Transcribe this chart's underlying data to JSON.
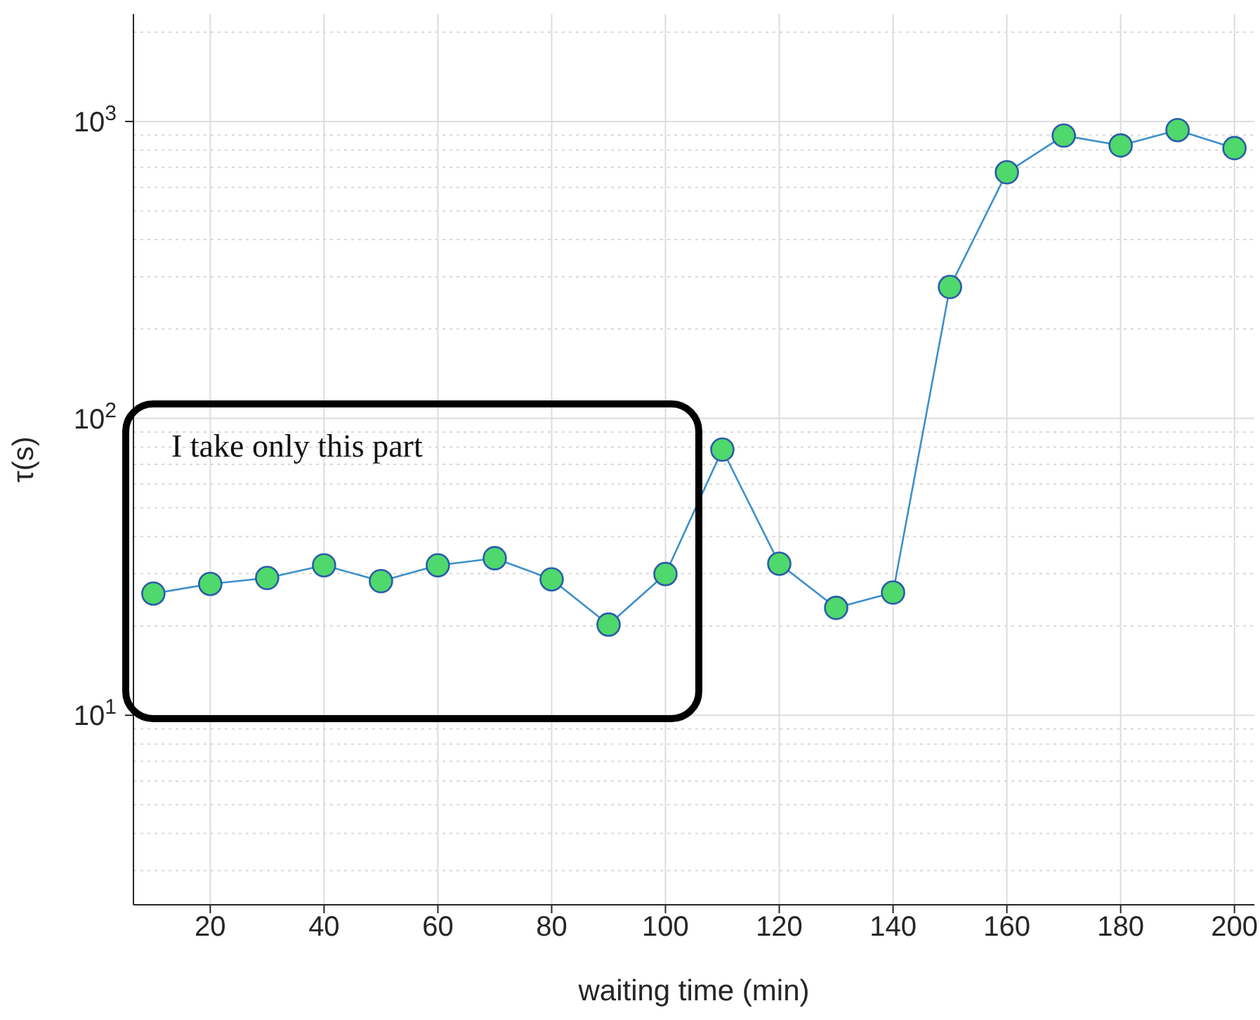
{
  "chart_data": {
    "type": "line",
    "xlabel": "waiting time (min)",
    "ylabel": "τ(s)",
    "log": "y",
    "grid": true,
    "marker": "circle",
    "xlim": [
      6.5,
      203.5
    ],
    "xticks": [
      20,
      40,
      60,
      80,
      100,
      120,
      140,
      160,
      180,
      200
    ],
    "ylim": [
      2.3,
      2300
    ],
    "yticks": [
      {
        "value": 10,
        "label": "10$^{1}$"
      },
      {
        "value": 100,
        "label": "10$^{2}$"
      },
      {
        "value": 1000,
        "label": "10$^{3}$"
      }
    ],
    "x": [
      10,
      20,
      30,
      40,
      50,
      60,
      70,
      80,
      90,
      100,
      110,
      120,
      130,
      140,
      150,
      160,
      170,
      180,
      190,
      200
    ],
    "series": [
      {
        "color": "#3d8fc9",
        "values": [
          25.7,
          27.7,
          29,
          32,
          28.3,
          32,
          33.8,
          28.7,
          20.2,
          29.9,
          78.5,
          32.4,
          23,
          25.9,
          277,
          674,
          896,
          830,
          935,
          813
        ]
      }
    ],
    "annotations": [
      "I take only this part"
    ]
  }
}
